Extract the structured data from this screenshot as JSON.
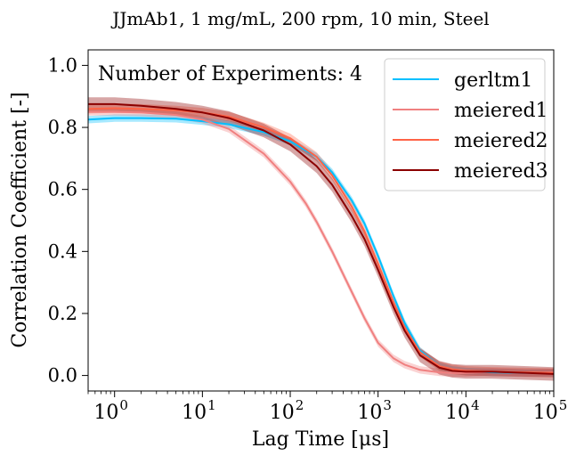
{
  "chart_data": {
    "type": "line",
    "title": "JJmAb1, 1 mg/mL, 200 rpm, 10 min, Steel",
    "xlabel": "Lag Time [μs]",
    "ylabel": "Correlation Coefficient [-]",
    "xscale": "log",
    "xlim": [
      0.5,
      100000
    ],
    "ylim": [
      -0.05,
      1.05
    ],
    "x_ticks": [
      1,
      10,
      100,
      1000,
      10000,
      100000
    ],
    "x_tick_labels": [
      {
        "base": "10",
        "exp": "0"
      },
      {
        "base": "10",
        "exp": "1"
      },
      {
        "base": "10",
        "exp": "2"
      },
      {
        "base": "10",
        "exp": "3"
      },
      {
        "base": "10",
        "exp": "4"
      },
      {
        "base": "10",
        "exp": "5"
      }
    ],
    "y_ticks": [
      0.0,
      0.2,
      0.4,
      0.6,
      0.8,
      1.0
    ],
    "y_tick_labels": [
      "0.0",
      "0.2",
      "0.4",
      "0.6",
      "0.8",
      "1.0"
    ],
    "annotation": "Number of Experiments: 4",
    "legend_position": "top-right",
    "grid": false,
    "series": [
      {
        "name": "gerltm1",
        "color": "#00bfff",
        "band": 0.012,
        "x": [
          0.5,
          1,
          2,
          5,
          10,
          20,
          50,
          100,
          200,
          300,
          500,
          700,
          1000,
          1500,
          2000,
          3000,
          5000,
          7000,
          10000,
          20000,
          50000,
          100000
        ],
        "y": [
          0.825,
          0.83,
          0.83,
          0.828,
          0.82,
          0.81,
          0.785,
          0.755,
          0.705,
          0.655,
          0.565,
          0.49,
          0.385,
          0.255,
          0.17,
          0.08,
          0.03,
          0.018,
          0.013,
          0.01,
          0.008,
          0.008
        ]
      },
      {
        "name": "meiered1",
        "color": "#f08080",
        "band": 0.012,
        "x": [
          0.5,
          1,
          2,
          5,
          10,
          20,
          50,
          100,
          150,
          200,
          300,
          500,
          700,
          1000,
          1500,
          2000,
          3000,
          5000,
          7000,
          10000,
          20000,
          50000,
          100000
        ],
        "y": [
          0.85,
          0.85,
          0.848,
          0.84,
          0.825,
          0.795,
          0.715,
          0.625,
          0.555,
          0.495,
          0.4,
          0.27,
          0.185,
          0.105,
          0.055,
          0.035,
          0.018,
          0.01,
          0.008,
          0.008,
          0.012,
          0.008,
          0.01
        ]
      },
      {
        "name": "meiered2",
        "color": "#ff6347",
        "band": 0.015,
        "x": [
          0.5,
          1,
          2,
          5,
          10,
          20,
          50,
          100,
          200,
          300,
          500,
          700,
          1000,
          1500,
          2000,
          3000,
          5000,
          7000,
          10000,
          20000,
          50000,
          100000
        ],
        "y": [
          0.86,
          0.862,
          0.86,
          0.855,
          0.848,
          0.835,
          0.8,
          0.765,
          0.705,
          0.645,
          0.545,
          0.465,
          0.36,
          0.235,
          0.155,
          0.075,
          0.03,
          0.02,
          0.015,
          0.012,
          0.01,
          0.008
        ]
      },
      {
        "name": "meiered3",
        "color": "#8b0000",
        "band": 0.022,
        "x": [
          0.5,
          1,
          2,
          5,
          10,
          20,
          50,
          100,
          200,
          300,
          500,
          700,
          1000,
          1500,
          2000,
          3000,
          5000,
          7000,
          10000,
          20000,
          50000,
          100000
        ],
        "y": [
          0.875,
          0.875,
          0.87,
          0.86,
          0.848,
          0.83,
          0.79,
          0.745,
          0.675,
          0.615,
          0.515,
          0.44,
          0.34,
          0.22,
          0.145,
          0.065,
          0.025,
          0.015,
          0.012,
          0.012,
          0.008,
          0.005
        ]
      }
    ]
  }
}
